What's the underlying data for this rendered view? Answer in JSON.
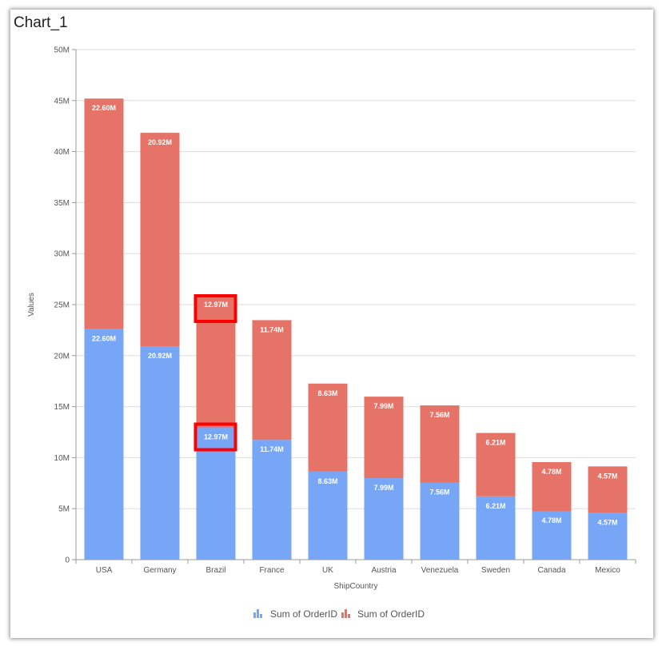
{
  "chart_title": "Chart_1",
  "colors": {
    "series1": "#77a6f7",
    "series2": "#e57367",
    "highlight": "#ff0000",
    "grid": "#dddddd",
    "axis": "#999999"
  },
  "chart_data": {
    "type": "bar",
    "stacked": true,
    "title": "Chart_1",
    "xlabel": "ShipCountry",
    "ylabel": "Values",
    "ylim": [
      0,
      50000000
    ],
    "yticks": [
      0,
      5000000,
      10000000,
      15000000,
      20000000,
      25000000,
      30000000,
      35000000,
      40000000,
      45000000,
      50000000
    ],
    "ytick_labels": [
      "0",
      "5M",
      "10M",
      "15M",
      "20M",
      "25M",
      "30M",
      "35M",
      "40M",
      "45M",
      "50M"
    ],
    "categories": [
      "USA",
      "Germany",
      "Brazil",
      "France",
      "UK",
      "Austria",
      "Venezuela",
      "Sweden",
      "Canada",
      "Mexico"
    ],
    "series": [
      {
        "name": "Sum of OrderID",
        "values": [
          22600000,
          20920000,
          12970000,
          11740000,
          8630000,
          7990000,
          7560000,
          6210000,
          4780000,
          4570000
        ],
        "labels": [
          "22.60M",
          "20.92M",
          "12.97M",
          "11.74M",
          "8.63M",
          "7.99M",
          "7.56M",
          "6.21M",
          "4.78M",
          "4.57M"
        ]
      },
      {
        "name": "Sum of OrderID",
        "values": [
          22600000,
          20920000,
          12970000,
          11740000,
          8630000,
          7990000,
          7560000,
          6210000,
          4780000,
          4570000
        ],
        "labels": [
          "22.60M",
          "20.92M",
          "12.97M",
          "11.74M",
          "8.63M",
          "7.99M",
          "7.56M",
          "6.21M",
          "4.78M",
          "4.57M"
        ]
      }
    ],
    "highlighted_category": "Brazil",
    "grid": true,
    "legend_position": "bottom-center"
  }
}
